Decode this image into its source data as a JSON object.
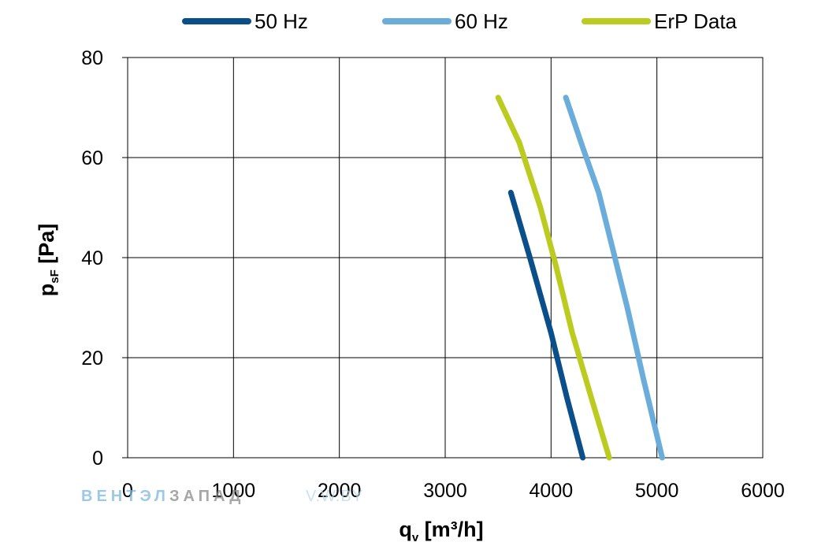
{
  "chart_data": {
    "type": "line",
    "title": "",
    "xlabel": {
      "main": "q",
      "sub": "v",
      "rest": " [m³/h]"
    },
    "ylabel": {
      "main": "p",
      "sub": "sF",
      "rest": " [Pa]"
    },
    "xlim": [
      0,
      6000
    ],
    "ylim": [
      0,
      80
    ],
    "x_ticks": [
      0,
      1000,
      2000,
      3000,
      4000,
      5000,
      6000
    ],
    "y_ticks": [
      0,
      20,
      40,
      60,
      80
    ],
    "grid": true,
    "legend_position": "top",
    "series": [
      {
        "name": "50 Hz",
        "color": "#0b4f8a",
        "points": [
          [
            3620,
            53
          ],
          [
            3800,
            40
          ],
          [
            4000,
            25
          ],
          [
            4150,
            12
          ],
          [
            4300,
            0
          ]
        ]
      },
      {
        "name": "60 Hz",
        "color": "#6aaddb",
        "points": [
          [
            4140,
            72
          ],
          [
            4300,
            62
          ],
          [
            4450,
            53
          ],
          [
            4580,
            42
          ],
          [
            4720,
            30
          ],
          [
            4870,
            16
          ],
          [
            5050,
            0
          ]
        ]
      },
      {
        "name": "ErP Data",
        "color": "#bccb1f",
        "points": [
          [
            3500,
            72
          ],
          [
            3700,
            63
          ],
          [
            3900,
            50
          ],
          [
            4050,
            38
          ],
          [
            4200,
            25
          ],
          [
            4380,
            12
          ],
          [
            4550,
            0
          ]
        ]
      }
    ]
  },
  "watermark": {
    "part1": "ВЕНТЭЛ",
    "part2": "ЗАПАД",
    "part3": "V.W.BY",
    "color1": "#7db8e0",
    "color2": "#8a8a8a"
  }
}
